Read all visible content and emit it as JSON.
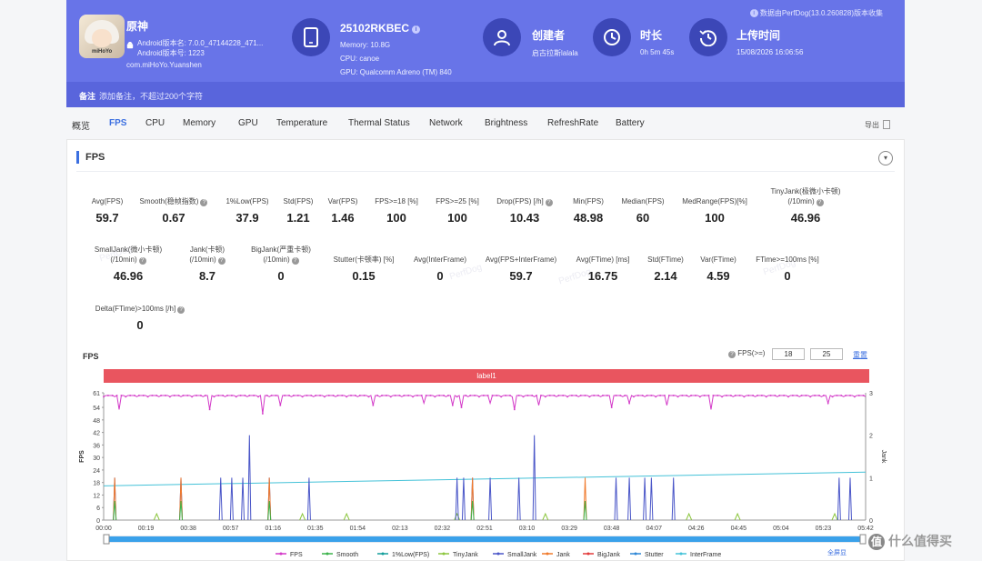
{
  "header": {
    "perfdog_version": "数据由PerfDog(13.0.260828)版本收集",
    "app": {
      "name": "原神",
      "android_version": "Android版本名: 7.0.0_47144228_471...",
      "android_code": "Android版本号: 1223",
      "package": "com.miHoYo.Yuanshen",
      "icon_label": "miHoYo"
    },
    "device": {
      "name": "25102RKBEC",
      "memory": "Memory: 10.8G",
      "cpu": "CPU: canoe",
      "gpu": "GPU: Qualcomm Adreno (TM) 840"
    },
    "creator": {
      "label": "创建者",
      "value": "启古拉斯lalala"
    },
    "duration": {
      "label": "时长",
      "value": "0h 5m 45s"
    },
    "upload": {
      "label": "上传时间",
      "value": "15/08/2026 16:06:56"
    },
    "note": {
      "label": "备注",
      "placeholder": "添加备注，不超过200个字符"
    }
  },
  "tabs": [
    "概览",
    "FPS",
    "CPU",
    "Memory",
    "GPU",
    "Temperature",
    "Thermal Status",
    "Network",
    "Brightness",
    "RefreshRate",
    "Battery"
  ],
  "active_tab": "FPS",
  "export_label": "导出",
  "panel": {
    "title": "FPS",
    "metrics_row1": [
      {
        "label": "Avg(FPS)",
        "value": "59.7"
      },
      {
        "label": "Smooth(稳帧指数)",
        "value": "0.67",
        "help": true
      },
      {
        "label": "1%Low(FPS)",
        "value": "37.9"
      },
      {
        "label": "Std(FPS)",
        "value": "1.21"
      },
      {
        "label": "Var(FPS)",
        "value": "1.46"
      },
      {
        "label": "FPS>=18 [%]",
        "value": "100"
      },
      {
        "label": "FPS>=25 [%]",
        "value": "100"
      },
      {
        "label": "Drop(FPS) [/h]",
        "value": "10.43",
        "help": true
      },
      {
        "label": "Min(FPS)",
        "value": "48.98"
      },
      {
        "label": "Median(FPS)",
        "value": "60"
      },
      {
        "label": "MedRange(FPS)[%]",
        "value": "100"
      },
      {
        "label": "TinyJank(极微小卡顿)",
        "label2": "(/10min)",
        "value": "46.96",
        "help": true
      }
    ],
    "metrics_row2": [
      {
        "label": "SmallJank(微小卡顿)",
        "label2": "(/10min)",
        "value": "46.96",
        "help": true
      },
      {
        "label": "Jank(卡顿)",
        "label2": "(/10min)",
        "value": "8.7",
        "help": true
      },
      {
        "label": "BigJank(严重卡顿)",
        "label2": "(/10min)",
        "value": "0",
        "help": true
      },
      {
        "label": "Stutter(卡顿率) [%]",
        "value": "0.15"
      },
      {
        "label": "Avg(InterFrame)",
        "value": "0"
      },
      {
        "label": "Avg(FPS+InterFrame)",
        "value": "59.7"
      },
      {
        "label": "Avg(FTime) [ms]",
        "value": "16.75"
      },
      {
        "label": "Std(FTime)",
        "value": "2.14"
      },
      {
        "label": "Var(FTime)",
        "value": "4.59"
      },
      {
        "label": "FTime>=100ms [%]",
        "value": "0"
      }
    ],
    "metrics_row3": [
      {
        "label": "Delta(FTime)>100ms [/h]",
        "value": "0",
        "help": true
      }
    ],
    "watermark": "PerfDog"
  },
  "chart_controls": {
    "title": "FPS",
    "threshold_label": "FPS(>=)",
    "threshold_1": "18",
    "threshold_2": "25",
    "reset_label": "重置",
    "label_bar": "label1",
    "fullscreen_label": "全屏显",
    "corner_logo": "什么值得买"
  },
  "colors": {
    "FPS": "#d339c8",
    "Smooth": "#3bb34a",
    "1%Low(FPS)": "#139e9a",
    "TinyJank": "#8cc63e",
    "SmallJank": "#4a56c8",
    "Jank": "#f07a2c",
    "BigJank": "#e33b3b",
    "Stutter": "#2e87d6",
    "InterFrame": "#44c2d8"
  },
  "chart_data": {
    "type": "line",
    "title": "FPS",
    "ylabel": "FPS",
    "y2label": "Jank",
    "ylim": [
      0,
      61
    ],
    "y2lim": [
      0,
      3
    ],
    "yticks": [
      0,
      6,
      12,
      18,
      24,
      30,
      36,
      42,
      48,
      54,
      61
    ],
    "y2ticks": [
      0,
      1,
      2,
      3
    ],
    "xticks": [
      "00:00",
      "00:19",
      "00:38",
      "00:57",
      "01:16",
      "01:35",
      "01:54",
      "02:13",
      "02:32",
      "02:51",
      "03:10",
      "03:29",
      "03:48",
      "04:07",
      "04:26",
      "04:45",
      "05:04",
      "05:23",
      "05:42"
    ],
    "duration_s": 345,
    "legend": [
      "FPS",
      "Smooth",
      "1%Low(FPS)",
      "TinyJank",
      "SmallJank",
      "Jank",
      "BigJank",
      "Stutter",
      "InterFrame"
    ],
    "fps_baseline": 59.7,
    "fps_dips": [
      {
        "t": 7,
        "v": 53
      },
      {
        "t": 48,
        "v": 53
      },
      {
        "t": 72,
        "v": 51
      },
      {
        "t": 80,
        "v": 55
      },
      {
        "t": 122,
        "v": 55
      },
      {
        "t": 145,
        "v": 56
      },
      {
        "t": 158,
        "v": 55
      },
      {
        "t": 162,
        "v": 54
      },
      {
        "t": 175,
        "v": 56
      },
      {
        "t": 186,
        "v": 53
      },
      {
        "t": 197,
        "v": 55
      },
      {
        "t": 230,
        "v": 54
      },
      {
        "t": 238,
        "v": 56
      },
      {
        "t": 255,
        "v": 55
      },
      {
        "t": 275,
        "v": 53
      },
      {
        "t": 328,
        "v": 56
      }
    ],
    "small_jank_spikes": [
      {
        "t": 5,
        "v": 1
      },
      {
        "t": 35,
        "v": 1
      },
      {
        "t": 53,
        "v": 1
      },
      {
        "t": 58,
        "v": 1
      },
      {
        "t": 63,
        "v": 1
      },
      {
        "t": 66,
        "v": 2
      },
      {
        "t": 75,
        "v": 1
      },
      {
        "t": 93,
        "v": 1
      },
      {
        "t": 160,
        "v": 1
      },
      {
        "t": 163,
        "v": 1
      },
      {
        "t": 167,
        "v": 1
      },
      {
        "t": 175,
        "v": 1
      },
      {
        "t": 188,
        "v": 1
      },
      {
        "t": 195,
        "v": 2
      },
      {
        "t": 232,
        "v": 1
      },
      {
        "t": 238,
        "v": 1
      },
      {
        "t": 245,
        "v": 1
      },
      {
        "t": 248,
        "v": 1
      },
      {
        "t": 258,
        "v": 1
      },
      {
        "t": 333,
        "v": 1
      },
      {
        "t": 338,
        "v": 1
      }
    ],
    "jank_spikes": [
      {
        "t": 5,
        "v": 1
      },
      {
        "t": 35,
        "v": 1
      },
      {
        "t": 75,
        "v": 1
      },
      {
        "t": 167,
        "v": 1
      },
      {
        "t": 218,
        "v": 1
      }
    ],
    "tiny_jank_spikes": [
      {
        "t": 24,
        "v": 0.1
      },
      {
        "t": 90,
        "v": 0.1
      },
      {
        "t": 110,
        "v": 0.1
      },
      {
        "t": 160,
        "v": 0.1
      },
      {
        "t": 200,
        "v": 0.1
      },
      {
        "t": 265,
        "v": 0.1
      },
      {
        "t": 287,
        "v": 0.1
      },
      {
        "t": 331,
        "v": 0.1
      }
    ],
    "interframe_line": {
      "start": 16.4,
      "end": 23
    }
  }
}
